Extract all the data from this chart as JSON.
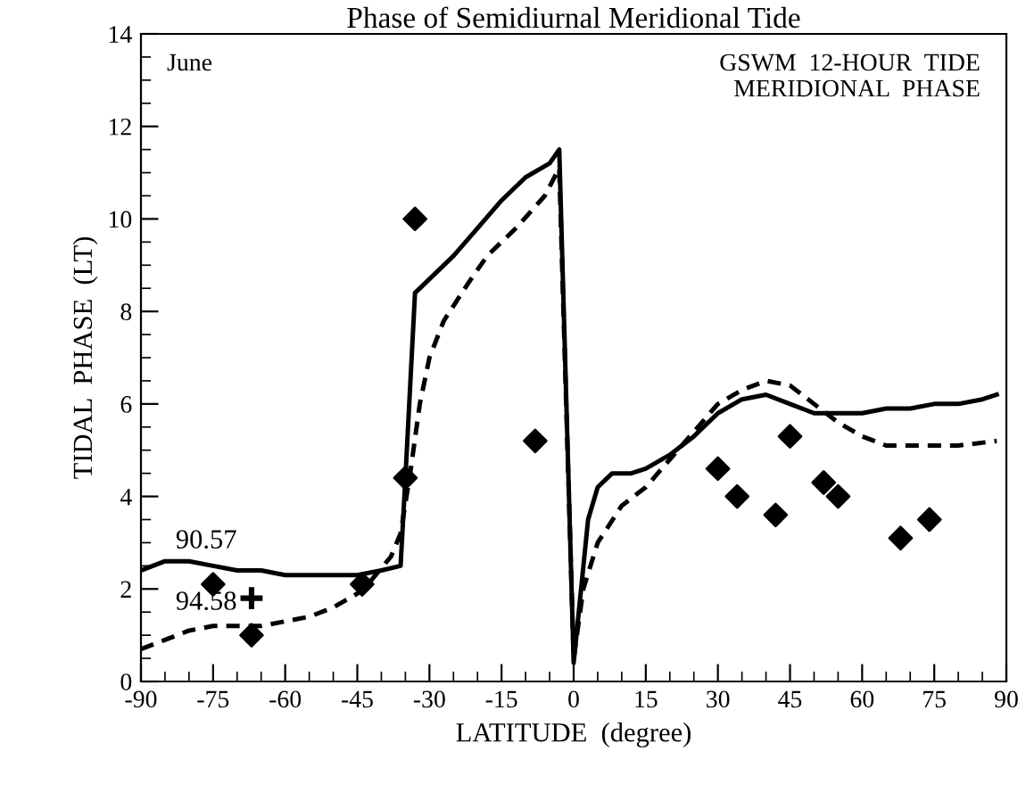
{
  "chart_data": {
    "type": "line",
    "title": "Phase of Semidiurnal Meridional Tide",
    "xlabel": "LATITUDE  (degree)",
    "ylabel": "TIDAL  PHASE  (LT)",
    "xlim": [
      -90,
      90
    ],
    "xticks": [
      -90,
      -75,
      -60,
      -45,
      -30,
      -15,
      0,
      15,
      30,
      45,
      60,
      75,
      90
    ],
    "ylim": [
      0,
      14
    ],
    "yticks": [
      0,
      2,
      4,
      6,
      8,
      10,
      12,
      14
    ],
    "grid": false,
    "legend": false,
    "annotations": [
      "June",
      "GSWM  12-HOUR  TIDE\nMERIDIONAL  PHASE",
      "90.57",
      "94.58"
    ],
    "series": [
      {
        "color": "#000000",
        "line_style": "solid",
        "marker": "none",
        "x": [
          -90,
          -85,
          -80,
          -75,
          -70,
          -65,
          -60,
          -45,
          -40,
          -36,
          -35,
          -33,
          -30,
          -25,
          -20,
          -15,
          -10,
          -5,
          -3,
          0,
          3,
          5,
          8,
          12,
          15,
          20,
          25,
          30,
          35,
          40,
          45,
          50,
          55,
          60,
          65,
          70,
          75,
          80,
          85,
          88
        ],
        "values": [
          2.4,
          2.6,
          2.6,
          2.5,
          2.4,
          2.4,
          2.3,
          2.3,
          2.4,
          2.5,
          4.4,
          8.4,
          8.7,
          9.2,
          9.8,
          10.4,
          10.9,
          11.2,
          11.5,
          0.4,
          3.5,
          4.2,
          4.5,
          4.5,
          4.6,
          4.9,
          5.3,
          5.8,
          6.1,
          6.2,
          6.0,
          5.8,
          5.8,
          5.8,
          5.9,
          5.9,
          6.0,
          6.0,
          6.1,
          6.2
        ]
      },
      {
        "color": "#000000",
        "line_style": "dashed",
        "marker": "none",
        "x": [
          -90,
          -85,
          -80,
          -75,
          -70,
          -65,
          -60,
          -55,
          -50,
          -45,
          -42,
          -38,
          -36,
          -34,
          -32,
          -30,
          -27,
          -22,
          -18,
          -12,
          -6,
          -3,
          0,
          2,
          5,
          10,
          15,
          20,
          25,
          30,
          35,
          40,
          45,
          50,
          55,
          60,
          65,
          70,
          80,
          88
        ],
        "values": [
          0.7,
          0.9,
          1.1,
          1.2,
          1.2,
          1.2,
          1.3,
          1.4,
          1.6,
          1.9,
          2.2,
          2.7,
          3.2,
          4.5,
          6.0,
          7.0,
          7.8,
          8.6,
          9.2,
          9.8,
          10.5,
          11.1,
          0.5,
          2.0,
          3.0,
          3.8,
          4.2,
          4.8,
          5.4,
          6.0,
          6.3,
          6.5,
          6.4,
          6.0,
          5.6,
          5.3,
          5.1,
          5.1,
          5.1,
          5.2
        ]
      },
      {
        "type": "scatter",
        "color": "#000000",
        "marker": "diamond",
        "x": [
          -75,
          -67,
          -44,
          -35,
          -33,
          -8,
          30,
          34,
          42,
          45,
          52,
          55,
          68,
          74
        ],
        "values": [
          2.1,
          1.0,
          2.1,
          4.4,
          10.0,
          5.2,
          4.6,
          4.0,
          3.6,
          5.3,
          4.3,
          4.0,
          3.1,
          3.5
        ]
      },
      {
        "type": "scatter",
        "color": "#000000",
        "marker": "cross",
        "x": [
          -67
        ],
        "values": [
          1.8
        ]
      }
    ]
  }
}
